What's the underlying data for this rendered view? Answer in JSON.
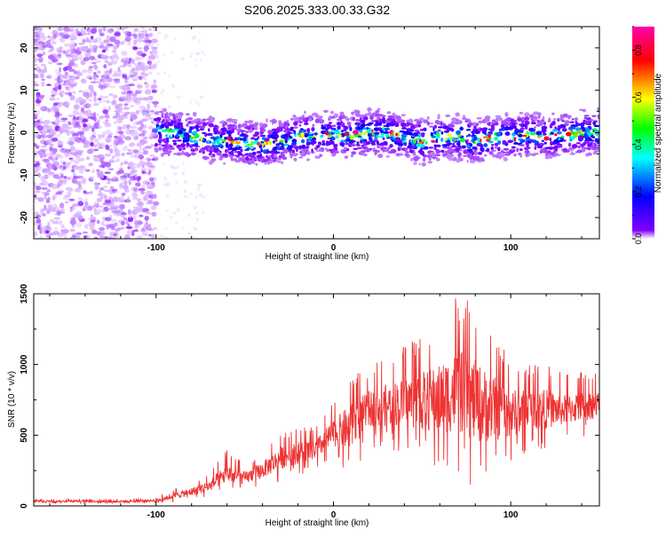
{
  "title": "S206.2025.333.00.33.G32",
  "chart_data": [
    {
      "type": "heatmap",
      "title": "S206.2025.333.00.33.G32",
      "xlabel": "Height of straight line (km)",
      "ylabel": "Frequency (Hz)",
      "xlim": [
        -169,
        150
      ],
      "ylim": [
        -25,
        25
      ],
      "x_ticks": [
        -100,
        0,
        100
      ],
      "x_tick_labels": [
        "-100",
        "0",
        "100"
      ],
      "y_ticks": [
        20,
        10,
        0,
        -10,
        -20
      ],
      "y_tick_labels": [
        "20",
        "10",
        "0",
        "-10",
        "-20"
      ],
      "colorbar": {
        "label": "Normalized spectral amplitude",
        "range": [
          0,
          0.9
        ],
        "ticks": [
          0.0,
          0.2,
          0.4,
          0.6,
          0.8
        ],
        "tick_labels": [
          "0.0",
          "0.2",
          "0.4",
          "0.6",
          "0.8"
        ],
        "colors": [
          "#ffffff",
          "#8000ff",
          "#0000ff",
          "#00ffff",
          "#00ff00",
          "#ffff00",
          "#ff0000",
          "#ff00aa"
        ]
      },
      "signal_track": {
        "x": [
          -100,
          -90,
          -80,
          -70,
          -60,
          -50,
          -40,
          -30,
          -20,
          -10,
          0,
          10,
          20,
          30,
          40,
          50,
          60,
          70,
          80,
          90,
          100,
          110,
          120,
          130,
          140,
          150
        ],
        "freq": [
          0,
          0,
          -1,
          -1.5,
          -2,
          -2.5,
          -3,
          -2,
          -1,
          -0.5,
          -0.5,
          -0.5,
          0,
          0,
          -1,
          -2,
          -1,
          -1,
          -2,
          -1,
          -1,
          -0.5,
          -1,
          -0.5,
          0,
          0
        ]
      },
      "noise_region_x": [
        -169,
        -100
      ],
      "grid": false
    },
    {
      "type": "line",
      "xlabel": "Height of straight line (km)",
      "ylabel": "SNR (10 * v/v)",
      "xlim": [
        -169,
        150
      ],
      "ylim": [
        0,
        1500
      ],
      "x_ticks": [
        -100,
        0,
        100
      ],
      "x_tick_labels": [
        "-100",
        "0",
        "100"
      ],
      "y_ticks": [
        0,
        500,
        1000,
        1500
      ],
      "y_tick_labels": [
        "0",
        "500",
        "1000",
        "1500"
      ],
      "color": "#ee3333",
      "series": [
        {
          "name": "SNR",
          "x": [
            -169,
            -120,
            -100,
            -90,
            -80,
            -70,
            -60,
            -50,
            -40,
            -30,
            -20,
            -10,
            0,
            10,
            20,
            30,
            40,
            50,
            60,
            70,
            80,
            90,
            100,
            110,
            120,
            130,
            140,
            150
          ],
          "envelope_max": [
            50,
            50,
            60,
            120,
            170,
            230,
            400,
            300,
            390,
            520,
            560,
            560,
            730,
            950,
            980,
            1060,
            1130,
            1230,
            1330,
            1500,
            1420,
            1230,
            1050,
            1020,
            1010,
            930,
            950,
            940
          ],
          "envelope_min": [
            20,
            15,
            20,
            25,
            40,
            60,
            80,
            100,
            130,
            170,
            210,
            250,
            320,
            200,
            420,
            400,
            380,
            300,
            230,
            200,
            120,
            200,
            290,
            380,
            390,
            450,
            480,
            520
          ]
        }
      ],
      "grid": false
    }
  ]
}
